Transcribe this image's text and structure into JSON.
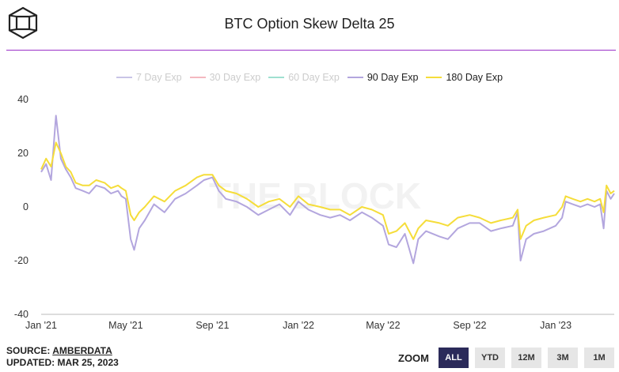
{
  "header": {
    "title": "BTC Option Skew Delta 25"
  },
  "footer": {
    "source_prefix": "SOURCE: ",
    "source_name": "AMBERDATA",
    "updated": "UPDATED: MAR 25, 2023"
  },
  "zoom": {
    "label": "ZOOM",
    "buttons": [
      "ALL",
      "YTD",
      "12M",
      "3M",
      "1M"
    ],
    "active": "ALL"
  },
  "watermark": "THE BLOCK",
  "colors": {
    "accent_rule": "#9b30c8",
    "series_90": "#b3a6de",
    "series_180": "#f5dd3a"
  },
  "chart_data": {
    "type": "line",
    "title": "BTC Option Skew Delta 25",
    "x_tick_labels": [
      "Jan '21",
      "May '21",
      "Sep '21",
      "Jan '22",
      "May '22",
      "Sep '22",
      "Jan '23"
    ],
    "x_tick_dates": [
      "2021-01-01",
      "2021-05-01",
      "2021-09-01",
      "2022-01-01",
      "2022-05-01",
      "2022-09-01",
      "2023-01-01"
    ],
    "x_range": [
      "2021-01-01",
      "2023-03-25"
    ],
    "y_ticks": [
      40,
      20,
      0,
      -20,
      -40
    ],
    "ylim": [
      -40,
      40
    ],
    "grid": false,
    "legend_position": "top",
    "legend": [
      {
        "name": "7 Day Exp",
        "active": false,
        "color": "#c9c4e6"
      },
      {
        "name": "30 Day Exp",
        "active": false,
        "color": "#f4b8c0"
      },
      {
        "name": "60 Day Exp",
        "active": false,
        "color": "#9fe0d0"
      },
      {
        "name": "90 Day Exp",
        "active": true,
        "color": "#b3a6de"
      },
      {
        "name": "180 Day Exp",
        "active": true,
        "color": "#f5dd3a"
      }
    ],
    "series": [
      {
        "name": "90 Day Exp",
        "x": [
          "2021-01-01",
          "2021-01-08",
          "2021-01-15",
          "2021-01-22",
          "2021-01-29",
          "2021-02-05",
          "2021-02-12",
          "2021-02-19",
          "2021-03-01",
          "2021-03-10",
          "2021-03-20",
          "2021-04-01",
          "2021-04-10",
          "2021-04-20",
          "2021-04-25",
          "2021-05-01",
          "2021-05-08",
          "2021-05-13",
          "2021-05-20",
          "2021-05-28",
          "2021-06-10",
          "2021-06-25",
          "2021-07-10",
          "2021-07-25",
          "2021-08-10",
          "2021-08-20",
          "2021-09-01",
          "2021-09-10",
          "2021-09-20",
          "2021-10-05",
          "2021-10-20",
          "2021-11-05",
          "2021-11-20",
          "2021-12-05",
          "2021-12-20",
          "2022-01-01",
          "2022-01-15",
          "2022-02-01",
          "2022-02-15",
          "2022-03-01",
          "2022-03-15",
          "2022-04-01",
          "2022-04-15",
          "2022-05-01",
          "2022-05-09",
          "2022-05-20",
          "2022-06-01",
          "2022-06-13",
          "2022-06-20",
          "2022-07-01",
          "2022-07-20",
          "2022-08-01",
          "2022-08-15",
          "2022-09-01",
          "2022-09-15",
          "2022-10-01",
          "2022-10-15",
          "2022-11-01",
          "2022-11-08",
          "2022-11-12",
          "2022-11-20",
          "2022-12-01",
          "2022-12-15",
          "2023-01-01",
          "2023-01-10",
          "2023-01-15",
          "2023-01-25",
          "2023-02-05",
          "2023-02-15",
          "2023-02-25",
          "2023-03-05",
          "2023-03-10",
          "2023-03-14",
          "2023-03-20",
          "2023-03-25"
        ],
        "values": [
          13,
          16,
          10,
          34,
          18,
          14,
          11,
          7,
          6,
          5,
          8,
          7,
          5,
          6,
          4,
          3,
          -12,
          -16,
          -8,
          -5,
          1,
          -2,
          3,
          5,
          8,
          10,
          11,
          6,
          3,
          2,
          0,
          -3,
          -1,
          1,
          -3,
          2,
          -1,
          -3,
          -4,
          -3,
          -5,
          -2,
          -4,
          -7,
          -14,
          -15,
          -10,
          -21,
          -12,
          -9,
          -11,
          -12,
          -8,
          -6,
          -6,
          -9,
          -8,
          -7,
          -2,
          -20,
          -12,
          -10,
          -9,
          -7,
          -4,
          2,
          1,
          0,
          1,
          0,
          1,
          -8,
          6,
          3,
          5
        ]
      },
      {
        "name": "180 Day Exp",
        "x": [
          "2021-01-01",
          "2021-01-08",
          "2021-01-15",
          "2021-01-22",
          "2021-01-29",
          "2021-02-05",
          "2021-02-12",
          "2021-02-19",
          "2021-03-01",
          "2021-03-10",
          "2021-03-20",
          "2021-04-01",
          "2021-04-10",
          "2021-04-20",
          "2021-04-25",
          "2021-05-01",
          "2021-05-08",
          "2021-05-13",
          "2021-05-20",
          "2021-05-28",
          "2021-06-10",
          "2021-06-25",
          "2021-07-10",
          "2021-07-25",
          "2021-08-10",
          "2021-08-20",
          "2021-09-01",
          "2021-09-10",
          "2021-09-20",
          "2021-10-05",
          "2021-10-20",
          "2021-11-05",
          "2021-11-20",
          "2021-12-05",
          "2021-12-20",
          "2022-01-01",
          "2022-01-15",
          "2022-02-01",
          "2022-02-15",
          "2022-03-01",
          "2022-03-15",
          "2022-04-01",
          "2022-04-15",
          "2022-05-01",
          "2022-05-09",
          "2022-05-20",
          "2022-06-01",
          "2022-06-13",
          "2022-06-20",
          "2022-07-01",
          "2022-07-20",
          "2022-08-01",
          "2022-08-15",
          "2022-09-01",
          "2022-09-15",
          "2022-10-01",
          "2022-10-15",
          "2022-11-01",
          "2022-11-08",
          "2022-11-12",
          "2022-11-20",
          "2022-12-01",
          "2022-12-15",
          "2023-01-01",
          "2023-01-10",
          "2023-01-15",
          "2023-01-25",
          "2023-02-05",
          "2023-02-15",
          "2023-02-25",
          "2023-03-05",
          "2023-03-10",
          "2023-03-14",
          "2023-03-20",
          "2023-03-25"
        ],
        "values": [
          14,
          18,
          15,
          24,
          20,
          15,
          13,
          9,
          8,
          8,
          10,
          9,
          7,
          8,
          7,
          6,
          -3,
          -5,
          -2,
          0,
          4,
          2,
          6,
          8,
          11,
          12,
          12,
          8,
          6,
          5,
          3,
          0,
          2,
          3,
          0,
          4,
          1,
          0,
          -1,
          -1,
          -3,
          0,
          -1,
          -3,
          -10,
          -9,
          -6,
          -12,
          -8,
          -5,
          -6,
          -7,
          -4,
          -3,
          -4,
          -6,
          -5,
          -4,
          -1,
          -12,
          -7,
          -5,
          -4,
          -3,
          0,
          4,
          3,
          2,
          3,
          2,
          3,
          -2,
          8,
          5,
          6
        ]
      }
    ]
  }
}
